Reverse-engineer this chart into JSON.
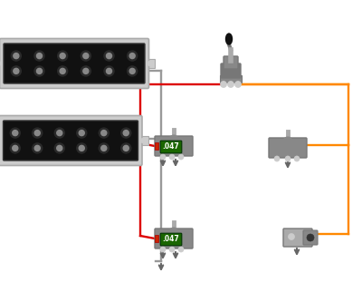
{
  "bg_color": "#ffffff",
  "wire_red": "#dd0000",
  "wire_orange": "#ff8800",
  "wire_gray": "#999999",
  "cap_color": "#1a6600",
  "cap_text": ".047",
  "figw": 4.0,
  "figh": 3.33,
  "dpi": 100
}
